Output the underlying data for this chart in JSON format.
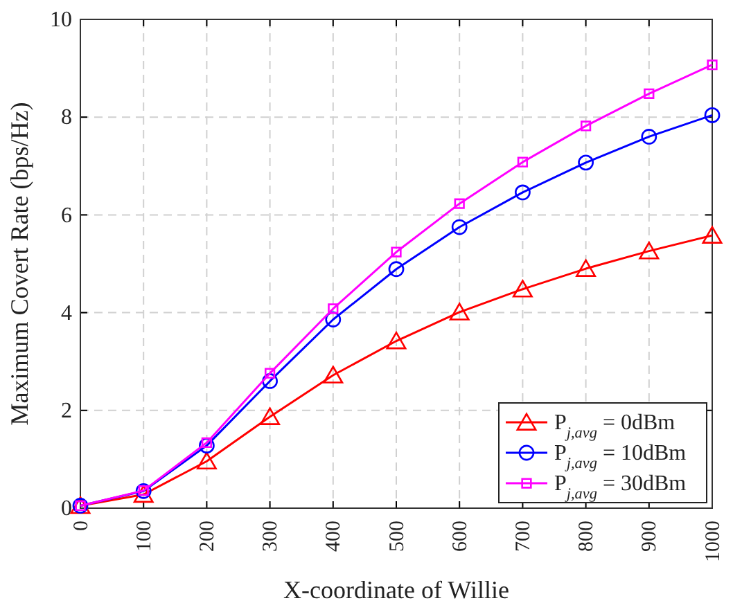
{
  "chart_data": {
    "type": "line",
    "xlabel": "X-coordinate of Willie",
    "ylabel": "Maximum Covert Rate (bps/Hz)",
    "x": [
      0,
      100,
      200,
      300,
      400,
      500,
      600,
      700,
      800,
      900,
      1000
    ],
    "xlim": [
      0,
      1000
    ],
    "xticks": [
      0,
      100,
      200,
      300,
      400,
      500,
      600,
      700,
      800,
      900,
      1000
    ],
    "ylim": [
      0,
      10
    ],
    "yticks": [
      0,
      2,
      4,
      6,
      8,
      10
    ],
    "grid": true,
    "legend": "bottom right",
    "line_style": "solid",
    "series": [
      {
        "name": "P$_{j,avg}$ = 0dBm",
        "color": "#ff0000",
        "marker": "triangle",
        "values": [
          0.05,
          0.28,
          0.96,
          1.87,
          2.72,
          3.42,
          4.01,
          4.48,
          4.9,
          5.26,
          5.58
        ]
      },
      {
        "name": "P$_{j,avg}$ = 10dBm",
        "color": "#0000ff",
        "marker": "circle",
        "values": [
          0.05,
          0.35,
          1.28,
          2.6,
          3.86,
          4.89,
          5.75,
          6.46,
          7.07,
          7.6,
          8.04
        ]
      },
      {
        "name": "P$_{j,avg}$ = 30dBm",
        "color": "#ff00ff",
        "marker": "square",
        "values": [
          0.05,
          0.36,
          1.34,
          2.76,
          4.08,
          5.24,
          6.23,
          7.08,
          7.82,
          8.48,
          9.07
        ]
      }
    ]
  }
}
